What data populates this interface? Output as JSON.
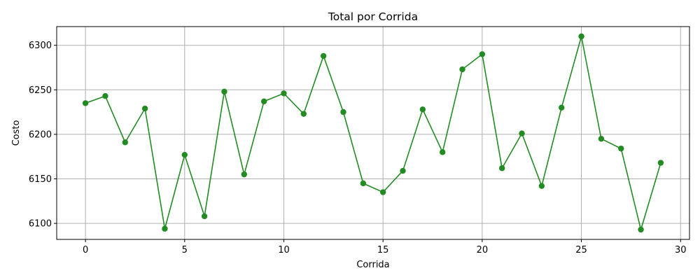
{
  "chart_data": {
    "type": "line",
    "title": "Total por Corrida",
    "xlabel": "Corrida",
    "ylabel": "Costo",
    "xlim": [
      -1.45,
      30.45
    ],
    "ylim": [
      6082,
      6321
    ],
    "xticks": [
      0,
      5,
      10,
      15,
      20,
      25,
      30
    ],
    "yticks": [
      6100,
      6150,
      6200,
      6250,
      6300
    ],
    "grid": true,
    "marker": "circle",
    "series": [
      {
        "color": "#228b22",
        "x": [
          0,
          1,
          2,
          3,
          4,
          5,
          6,
          7,
          8,
          9,
          10,
          11,
          12,
          13,
          14,
          15,
          16,
          17,
          18,
          19,
          20,
          21,
          22,
          23,
          24,
          25,
          26,
          27,
          28,
          29
        ],
        "values": [
          6235,
          6243,
          6191,
          6229,
          6094,
          6177,
          6108,
          6248,
          6155,
          6237,
          6246,
          6223,
          6288,
          6225,
          6145,
          6135,
          6159,
          6228,
          6180,
          6273,
          6290,
          6162,
          6201,
          6142,
          6230,
          6310,
          6195,
          6184,
          6093,
          6168
        ]
      }
    ]
  }
}
